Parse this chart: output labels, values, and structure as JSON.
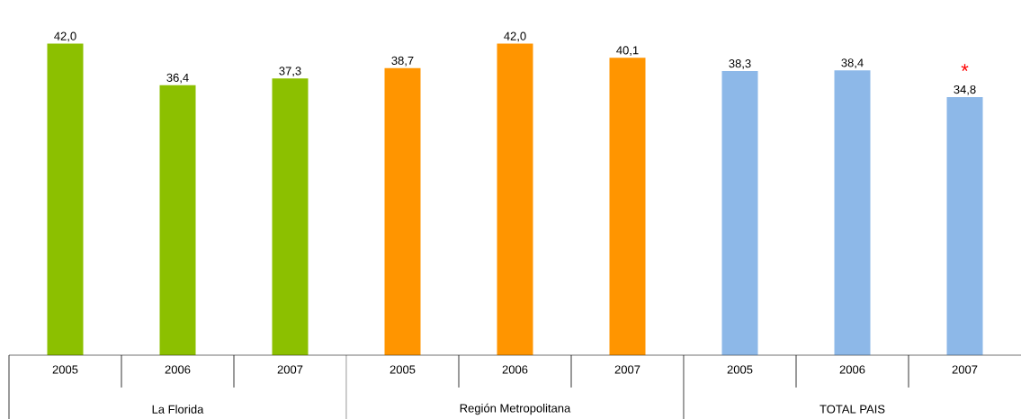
{
  "chart_data": {
    "type": "bar",
    "categories": [
      "2005",
      "2006",
      "2007",
      "2005",
      "2006",
      "2007",
      "2005",
      "2006",
      "2007"
    ],
    "values": [
      42.0,
      36.4,
      37.3,
      38.7,
      42.0,
      40.1,
      38.3,
      38.4,
      34.8
    ],
    "colors": [
      "#8cc000",
      "#8cc000",
      "#8cc000",
      "#ff9500",
      "#ff9500",
      "#ff9500",
      "#8db8e8",
      "#8db8e8",
      "#8db8e8"
    ],
    "value_labels": [
      "42,0",
      "36,4",
      "37,3",
      "38,7",
      "42,0",
      "40,1",
      "38,3",
      "38,4",
      "34,8"
    ],
    "annotations": [
      "La Florida",
      "Región Metropolitana",
      "TOTAL PAIS",
      "*"
    ]
  }
}
